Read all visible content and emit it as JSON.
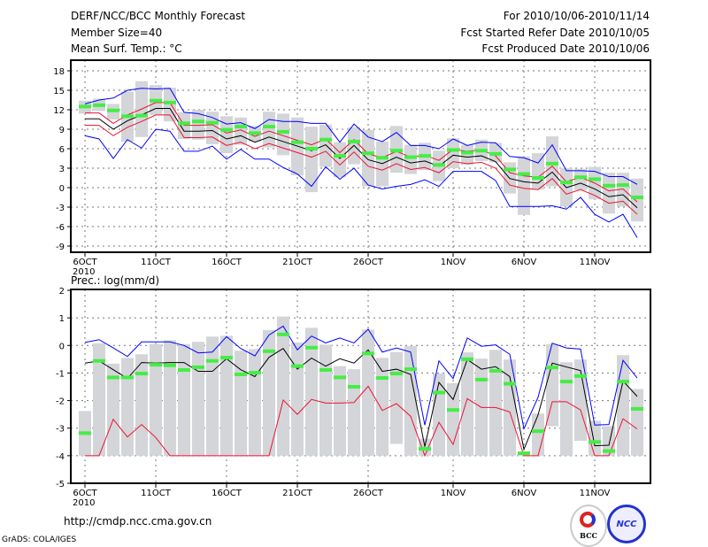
{
  "header": {
    "title": "DERF/NCC/BCC Monthly Forecast",
    "member_size": "Member Size=40",
    "variable": "Mean Surf. Temp.: °C",
    "period": "For 2010/10/06-2010/11/14",
    "started": "Fcst Started Refer Date 2010/10/05",
    "produced": "Fcst Produced Date 2010/10/06"
  },
  "footer": {
    "url": "http://cmdp.ncc.cma.gov.cn",
    "credit": "GrADS: COLA/IGES",
    "logo_bcc": "BCC",
    "logo_ncc": "NCC"
  },
  "colors": {
    "max_min": "#0000ff",
    "spread": "#ee1133",
    "mean": "#000000",
    "obs": "#44ee44",
    "bar": "#d3d5d8"
  },
  "chart_data": [
    {
      "type": "line",
      "title": "Mean Surf. Temp.: °C",
      "x_start": "2010-10-06",
      "n_days": 40,
      "xticks": [
        {
          "day": 0,
          "label": "6OCT"
        },
        {
          "day": 5,
          "label": "11OCT"
        },
        {
          "day": 10,
          "label": "16OCT"
        },
        {
          "day": 15,
          "label": "21OCT"
        },
        {
          "day": 20,
          "label": "26OCT"
        },
        {
          "day": 26,
          "label": "1NOV"
        },
        {
          "day": 31,
          "label": "6NOV"
        },
        {
          "day": 36,
          "label": "11NOV"
        }
      ],
      "year_label": "2010",
      "ylim": [
        -10,
        20
      ],
      "yticks": [
        -9,
        -6,
        -3,
        0,
        3,
        6,
        9,
        12,
        15,
        18
      ],
      "grid": true,
      "series": [
        {
          "name": "bar_high",
          "values": [
            13.4,
            13.7,
            12.9,
            14.8,
            16.4,
            15.8,
            15.4,
            11.6,
            12.0,
            11.7,
            11.0,
            10.8,
            9.5,
            11.7,
            11.4,
            10.8,
            9.4,
            9.7,
            7.0,
            9.3,
            8.9,
            7.1,
            9.5,
            6.6,
            6.9,
            5.7,
            7.6,
            6.6,
            7.4,
            6.9,
            3.9,
            4.8,
            5.3,
            7.9,
            3.0,
            2.9,
            3.2,
            2.3,
            2.3,
            1.4
          ]
        },
        {
          "name": "bar_low",
          "values": [
            11.4,
            11.8,
            10.5,
            7.1,
            7.8,
            11.2,
            10.2,
            7.5,
            7.4,
            6.7,
            5.3,
            6.6,
            7.1,
            6.2,
            5.0,
            1.9,
            -0.7,
            3.2,
            1.6,
            3.6,
            0.2,
            0.2,
            2.3,
            2.1,
            2.7,
            1.0,
            3.0,
            3.5,
            4.1,
            3.9,
            -0.9,
            -4.2,
            -0.3,
            0.2,
            -2.9,
            -0.4,
            -1.8,
            -4.0,
            -2.9,
            -5.2
          ]
        },
        {
          "name": "max",
          "values": [
            12.9,
            13.5,
            13.8,
            15.0,
            15.3,
            15.2,
            15.3,
            11.6,
            11.4,
            10.8,
            9.8,
            10.0,
            9.1,
            10.5,
            10.2,
            10.2,
            9.9,
            9.9,
            7.0,
            9.8,
            7.8,
            7.1,
            8.5,
            6.5,
            6.5,
            6.0,
            7.5,
            6.5,
            7.0,
            6.9,
            4.8,
            4.6,
            3.8,
            6.6,
            2.6,
            2.6,
            2.5,
            1.7,
            1.7,
            0.5
          ]
        },
        {
          "name": "min",
          "values": [
            8.0,
            7.5,
            4.5,
            7.4,
            6.1,
            9.0,
            8.7,
            5.6,
            5.6,
            6.4,
            4.4,
            5.9,
            4.4,
            4.4,
            3.1,
            2.1,
            0.2,
            3.2,
            1.3,
            3.0,
            0.4,
            -0.2,
            0.2,
            0.5,
            1.2,
            0.2,
            2.5,
            2.5,
            2.5,
            1.1,
            -2.9,
            -2.9,
            -2.9,
            -2.8,
            -3.3,
            -1.5,
            -4.1,
            -5.3,
            -4.1,
            -7.7
          ]
        },
        {
          "name": "upper",
          "values": [
            11.5,
            11.5,
            9.9,
            11.2,
            12.1,
            13.1,
            13.1,
            9.6,
            9.6,
            9.7,
            8.4,
            8.9,
            7.9,
            8.7,
            8.0,
            7.3,
            6.6,
            7.5,
            5.4,
            7.4,
            5.2,
            4.6,
            5.6,
            4.7,
            5.0,
            4.2,
            5.9,
            5.6,
            5.8,
            4.9,
            2.3,
            1.8,
            1.6,
            3.3,
            0.9,
            1.6,
            0.7,
            -0.5,
            -0.2,
            -2.2
          ]
        },
        {
          "name": "lower",
          "values": [
            9.6,
            9.6,
            8.0,
            9.3,
            10.2,
            11.2,
            11.2,
            7.7,
            7.7,
            7.8,
            6.5,
            7.0,
            6.0,
            6.8,
            6.1,
            5.4,
            4.7,
            5.6,
            3.5,
            5.5,
            3.3,
            2.7,
            3.7,
            2.8,
            3.1,
            2.3,
            4.0,
            3.7,
            3.9,
            3.0,
            0.4,
            -0.1,
            -0.3,
            1.4,
            -1.0,
            -0.3,
            -1.2,
            -2.4,
            -2.1,
            -4.1
          ]
        },
        {
          "name": "mean",
          "values": [
            10.6,
            10.6,
            9.0,
            10.3,
            11.2,
            12.2,
            12.2,
            8.7,
            8.7,
            8.8,
            7.5,
            8.0,
            7.0,
            7.8,
            7.1,
            6.4,
            5.7,
            6.6,
            4.5,
            6.5,
            4.3,
            3.7,
            4.7,
            3.8,
            4.1,
            3.3,
            5.0,
            4.7,
            4.9,
            4.0,
            1.4,
            0.9,
            0.7,
            2.4,
            0.0,
            0.7,
            -0.2,
            -1.4,
            -1.1,
            -3.1
          ]
        },
        {
          "name": "obs",
          "values": [
            12.5,
            12.7,
            11.9,
            11.0,
            11.1,
            13.4,
            13.1,
            9.9,
            10.2,
            10.0,
            8.9,
            9.4,
            8.4,
            9.4,
            8.6,
            7.0,
            6.0,
            7.4,
            4.9,
            7.1,
            5.3,
            4.6,
            5.7,
            4.7,
            4.9,
            3.5,
            5.8,
            5.4,
            5.7,
            5.2,
            2.8,
            2.1,
            1.5,
            3.7,
            0.8,
            1.6,
            1.3,
            0.3,
            0.4,
            -1.5
          ]
        }
      ]
    },
    {
      "type": "line",
      "title": "Prec.: log(mm/d)",
      "x_start": "2010-10-06",
      "n_days": 40,
      "xticks": [
        {
          "day": 0,
          "label": "6OCT"
        },
        {
          "day": 5,
          "label": "11OCT"
        },
        {
          "day": 10,
          "label": "16OCT"
        },
        {
          "day": 15,
          "label": "21OCT"
        },
        {
          "day": 20,
          "label": "26OCT"
        },
        {
          "day": 26,
          "label": "1NOV"
        },
        {
          "day": 31,
          "label": "6NOV"
        },
        {
          "day": 36,
          "label": "11NOV"
        }
      ],
      "year_label": "2010",
      "ylim": [
        -5,
        2
      ],
      "yticks": [
        -5,
        -4,
        -3,
        -2,
        -1,
        0,
        1,
        2
      ],
      "grid": true,
      "series": [
        {
          "name": "bar_high",
          "values": [
            -2.38,
            0.08,
            -0.66,
            -0.45,
            -0.32,
            0.05,
            0.19,
            0.05,
            0.13,
            0.32,
            0.35,
            -0.19,
            -0.13,
            0.56,
            1.05,
            0.11,
            0.64,
            0.03,
            -0.75,
            -0.86,
            0.57,
            -0.45,
            -0.24,
            -0.02,
            -3.38,
            -1.02,
            -1.37,
            -0.25,
            -0.48,
            -0.16,
            -0.51,
            -3.88,
            -2.47,
            0.05,
            -0.61,
            -0.51,
            -2.73,
            -2.93,
            -0.35,
            -1.58
          ]
        },
        {
          "name": "bar_low",
          "values": [
            -4,
            -4,
            -4,
            -4,
            -4,
            -4,
            -4,
            -4,
            -4,
            -4,
            -4,
            -4,
            -4,
            -4,
            -4,
            -4,
            -4,
            -4,
            -4,
            -4,
            -4,
            -4,
            -3.57,
            -4,
            -4,
            -4,
            -4,
            -4,
            -4,
            -4,
            -4,
            -4,
            -4,
            -2.93,
            -4,
            -3.46,
            -4,
            -4,
            -4,
            -4
          ]
        },
        {
          "name": "max",
          "values": [
            0.11,
            0.21,
            -0.09,
            -0.4,
            0.13,
            0.13,
            0.13,
            0.0,
            -0.27,
            -0.24,
            0.32,
            -0.11,
            -0.38,
            0.38,
            0.7,
            -0.16,
            0.34,
            0.09,
            0.27,
            0.09,
            0.59,
            -0.24,
            -0.09,
            -0.24,
            -2.89,
            -0.56,
            -1.2,
            0.27,
            -0.03,
            0.02,
            -0.32,
            -3.02,
            -1.88,
            0.08,
            -0.09,
            -0.13,
            -2.89,
            -2.87,
            -0.54,
            -1.18
          ]
        },
        {
          "name": "min",
          "values": [
            -4,
            -4,
            -2.68,
            -3.32,
            -2.87,
            -3.34,
            -4,
            -4,
            -4,
            -4,
            -4,
            -4,
            -4,
            -4,
            -1.98,
            -2.5,
            -1.96,
            -2.09,
            -2.09,
            -2.07,
            -1.48,
            -2.36,
            -2.11,
            -2.57,
            -4,
            -2.79,
            -3.59,
            -1.93,
            -2.25,
            -2.25,
            -2.41,
            -4,
            -4,
            -2.04,
            -2.04,
            -2.34,
            -4,
            -4,
            -2.66,
            -3.03
          ]
        },
        {
          "name": "mean",
          "values": [
            -0.64,
            -0.56,
            -0.88,
            -1.2,
            -0.62,
            -0.64,
            -0.62,
            -0.62,
            -0.94,
            -0.94,
            -0.48,
            -0.88,
            -1.13,
            -0.43,
            -0.11,
            -0.86,
            -0.46,
            -0.75,
            -0.48,
            -0.64,
            -0.16,
            -0.94,
            -0.86,
            -1.05,
            -3.67,
            -1.34,
            -1.96,
            -0.51,
            -0.86,
            -0.77,
            -1.13,
            -3.77,
            -2.52,
            -0.64,
            -0.78,
            -0.91,
            -3.64,
            -3.62,
            -1.29,
            -1.85
          ]
        },
        {
          "name": "obs",
          "values": [
            -3.18,
            -0.56,
            -1.16,
            -1.16,
            -1.02,
            -0.7,
            -0.72,
            -0.89,
            -0.79,
            -0.56,
            -0.44,
            -1.05,
            -0.99,
            -0.21,
            0.4,
            -0.75,
            -0.08,
            -0.89,
            -1.16,
            -1.5,
            -0.29,
            -1.18,
            -1.02,
            -0.86,
            -3.75,
            -1.71,
            -2.34,
            -0.5,
            -1.24,
            -0.92,
            -1.39,
            -3.91,
            -3.11,
            -0.8,
            -1.31,
            -1.11,
            -3.5,
            -3.83,
            -1.31,
            -2.3
          ]
        }
      ]
    }
  ]
}
